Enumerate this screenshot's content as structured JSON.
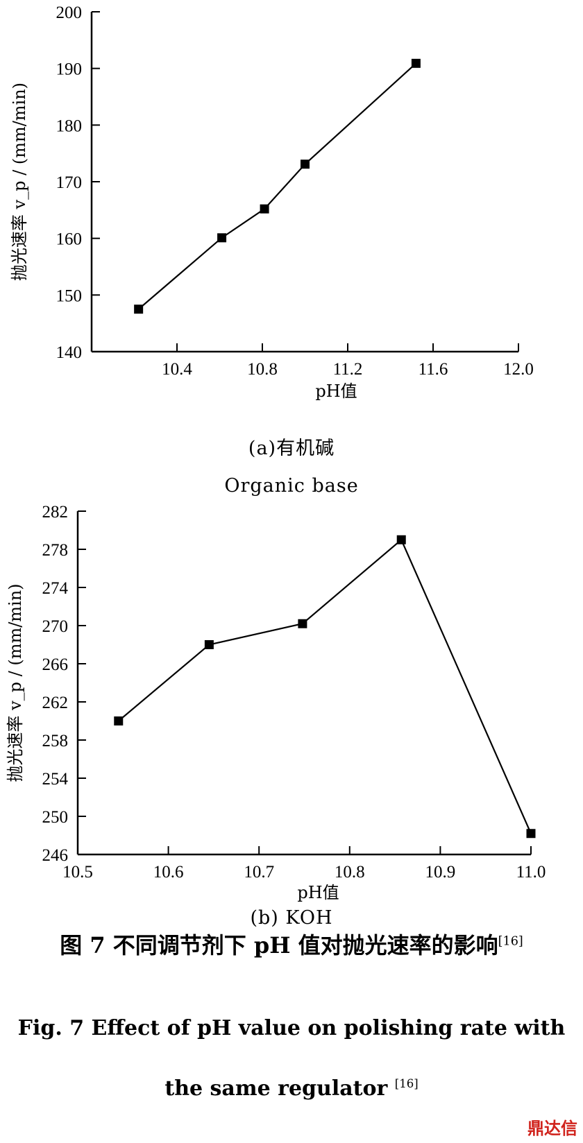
{
  "chart_data": [
    {
      "type": "line",
      "x": [
        10.22,
        10.61,
        10.81,
        11.0,
        11.52
      ],
      "values": [
        147.5,
        160.1,
        165.2,
        173.1,
        190.9
      ],
      "xlabel": "pH值",
      "ylabel": "抛光速率  v_p / (mm/min)",
      "xticks": [
        "10.4",
        "10.8",
        "11.2",
        "11.6",
        "12.0"
      ],
      "yticks": [
        "140",
        "150",
        "160",
        "170",
        "180",
        "190",
        "200"
      ],
      "xlim": [
        10.0,
        12.0
      ],
      "ylim": [
        140,
        200
      ],
      "subtitle_cn": "(a)有机碱",
      "subtitle_en": "Organic base"
    },
    {
      "type": "line",
      "x": [
        10.545,
        10.645,
        10.748,
        10.857,
        11.0
      ],
      "values": [
        260.0,
        268.0,
        270.2,
        279.0,
        248.2
      ],
      "xlabel": "pH值",
      "ylabel": "抛光速率  v_p / (mm/min)",
      "xticks": [
        "10.5",
        "10.6",
        "10.7",
        "10.8",
        "10.9",
        "11.0"
      ],
      "yticks": [
        "246",
        "250",
        "254",
        "258",
        "262",
        "266",
        "270",
        "274",
        "278",
        "282"
      ],
      "xlim": [
        10.5,
        11.0
      ],
      "ylim": [
        246,
        282
      ],
      "subtitle": "(b) KOH"
    }
  ],
  "caption": {
    "cn": "图 7   不同调节剂下 pH 值对抛光速率的影响",
    "en_line1": "Fig. 7 Effect of pH value on polishing rate with",
    "en_line2": "the same regulator ",
    "ref": "[16]"
  },
  "logo": {
    "text": "鼎达信",
    "color": "#d0231c"
  }
}
